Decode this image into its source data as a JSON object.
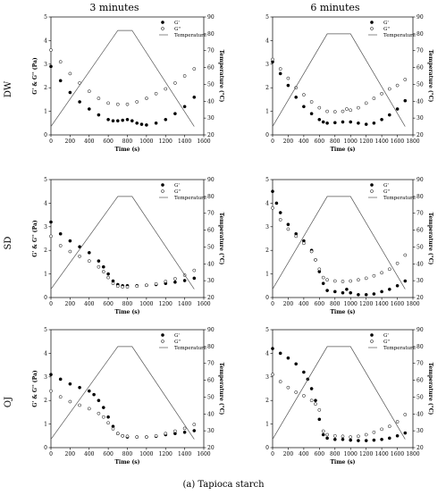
{
  "figure": {
    "col_titles": [
      "3 minutes",
      "6 minutes"
    ],
    "row_labels": [
      "DW",
      "SD",
      "OJ"
    ],
    "caption": "(a) Tapioca starch"
  },
  "chart_data": [
    {
      "id": "dw-3",
      "type": "scatter",
      "xlabel": "Time (s)",
      "ylabel_left": "G' & G'' (Pa)",
      "ylabel_right": "Temperature (°C)",
      "xlim": [
        0,
        1600
      ],
      "xticks": [
        0,
        200,
        400,
        600,
        800,
        1000,
        1200,
        1400,
        1600
      ],
      "ylim_left": [
        0,
        5
      ],
      "yticks_left": [
        0,
        1,
        2,
        3,
        4,
        5
      ],
      "ylim_right": [
        20,
        90
      ],
      "yticks_right": [
        20,
        30,
        40,
        50,
        60,
        70,
        80,
        90
      ],
      "legend": [
        "G'",
        "G''",
        "Temperature"
      ],
      "series": [
        {
          "name": "G'",
          "marker": "filled-circle",
          "x": [
            0,
            100,
            200,
            300,
            400,
            500,
            600,
            650,
            700,
            750,
            800,
            850,
            900,
            950,
            1000,
            1100,
            1200,
            1300,
            1400,
            1500
          ],
          "y": [
            2.9,
            2.3,
            1.8,
            1.4,
            1.1,
            0.85,
            0.65,
            0.6,
            0.6,
            0.62,
            0.65,
            0.6,
            0.5,
            0.45,
            0.42,
            0.5,
            0.65,
            0.9,
            1.2,
            1.6
          ]
        },
        {
          "name": "G''",
          "marker": "open-circle",
          "x": [
            0,
            100,
            200,
            300,
            400,
            500,
            600,
            700,
            800,
            900,
            1000,
            1100,
            1200,
            1300,
            1400,
            1500
          ],
          "y": [
            3.6,
            3.1,
            2.6,
            2.2,
            1.85,
            1.55,
            1.35,
            1.3,
            1.3,
            1.4,
            1.55,
            1.75,
            1.95,
            2.2,
            2.5,
            2.8
          ]
        },
        {
          "name": "Temperature",
          "marker": "line",
          "x": [
            0,
            700,
            850,
            1500
          ],
          "y": [
            25,
            82,
            82,
            25
          ]
        }
      ]
    },
    {
      "id": "dw-6",
      "type": "scatter",
      "xlabel": "Time (s)",
      "ylabel_left": "",
      "ylabel_right": "Temperature (°C)",
      "xlim": [
        0,
        1800
      ],
      "xticks": [
        0,
        200,
        400,
        600,
        800,
        1000,
        1200,
        1400,
        1600,
        1800
      ],
      "ylim_left": [
        0,
        5
      ],
      "yticks_left": [
        0,
        1,
        2,
        3,
        4,
        5
      ],
      "ylim_right": [
        20,
        90
      ],
      "yticks_right": [
        20,
        30,
        40,
        50,
        60,
        70,
        80,
        90
      ],
      "legend": [
        "G'",
        "G''",
        "Temperature"
      ],
      "series": [
        {
          "name": "G'",
          "marker": "filled-circle",
          "x": [
            0,
            100,
            200,
            300,
            400,
            500,
            600,
            650,
            700,
            800,
            900,
            1000,
            1100,
            1200,
            1300,
            1400,
            1500,
            1600,
            1700
          ],
          "y": [
            3.1,
            2.6,
            2.1,
            1.6,
            1.2,
            0.9,
            0.65,
            0.55,
            0.5,
            0.52,
            0.55,
            0.55,
            0.5,
            0.45,
            0.5,
            0.65,
            0.85,
            1.1,
            1.45
          ]
        },
        {
          "name": "G''",
          "marker": "open-circle",
          "x": [
            0,
            100,
            200,
            300,
            400,
            500,
            600,
            700,
            800,
            900,
            950,
            1000,
            1100,
            1200,
            1300,
            1400,
            1500,
            1600,
            1700
          ],
          "y": [
            3.2,
            2.8,
            2.4,
            2.0,
            1.7,
            1.4,
            1.15,
            1.0,
            0.98,
            1.0,
            1.1,
            1.05,
            1.15,
            1.35,
            1.55,
            1.75,
            1.95,
            2.1,
            2.35
          ]
        },
        {
          "name": "Temperature",
          "marker": "line",
          "x": [
            0,
            700,
            1000,
            1700
          ],
          "y": [
            25,
            80,
            80,
            25
          ]
        }
      ]
    },
    {
      "id": "sd-3",
      "type": "scatter",
      "xlabel": "Time (s)",
      "ylabel_left": "G' & G'' (Pa)",
      "ylabel_right": "Temperature (°C)",
      "xlim": [
        0,
        1600
      ],
      "xticks": [
        0,
        200,
        400,
        600,
        800,
        1000,
        1200,
        1400,
        1600
      ],
      "ylim_left": [
        0,
        5
      ],
      "yticks_left": [
        0,
        1,
        2,
        3,
        4,
        5
      ],
      "ylim_right": [
        20,
        90
      ],
      "yticks_right": [
        20,
        30,
        40,
        50,
        60,
        70,
        80,
        90
      ],
      "legend": [
        "G'",
        "G''",
        "Temperature"
      ],
      "series": [
        {
          "name": "G'",
          "marker": "filled-circle",
          "x": [
            0,
            100,
            200,
            300,
            400,
            500,
            550,
            600,
            650,
            700,
            750,
            800,
            900,
            1000,
            1100,
            1200,
            1300,
            1400,
            1500
          ],
          "y": [
            3.2,
            2.7,
            2.4,
            2.15,
            1.9,
            1.55,
            1.3,
            1.0,
            0.7,
            0.55,
            0.5,
            0.5,
            0.5,
            0.52,
            0.55,
            0.6,
            0.65,
            0.72,
            0.82
          ]
        },
        {
          "name": "G''",
          "marker": "open-circle",
          "x": [
            0,
            100,
            200,
            300,
            400,
            500,
            550,
            600,
            650,
            700,
            750,
            800,
            900,
            1000,
            1100,
            1200,
            1300,
            1400,
            1500
          ],
          "y": [
            2.6,
            2.2,
            1.95,
            1.75,
            1.55,
            1.3,
            1.1,
            0.85,
            0.6,
            0.48,
            0.45,
            0.45,
            0.48,
            0.52,
            0.58,
            0.68,
            0.8,
            0.95,
            1.15
          ]
        },
        {
          "name": "Temperature",
          "marker": "line",
          "x": [
            0,
            700,
            850,
            1500
          ],
          "y": [
            25,
            80,
            80,
            25
          ]
        }
      ]
    },
    {
      "id": "sd-6",
      "type": "scatter",
      "xlabel": "Time (s)",
      "ylabel_left": "",
      "ylabel_right": "Temperature (°C)",
      "xlim": [
        0,
        1800
      ],
      "xticks": [
        0,
        200,
        400,
        600,
        800,
        1000,
        1200,
        1400,
        1600,
        1800
      ],
      "ylim_left": [
        0,
        5
      ],
      "yticks_left": [
        0,
        1,
        2,
        3,
        4,
        5
      ],
      "ylim_right": [
        20,
        90
      ],
      "yticks_right": [
        20,
        30,
        40,
        50,
        60,
        70,
        80,
        90
      ],
      "legend": [
        "G'",
        "G''",
        "Temperature"
      ],
      "series": [
        {
          "name": "G'",
          "marker": "filled-circle",
          "x": [
            0,
            50,
            100,
            200,
            300,
            400,
            500,
            550,
            600,
            650,
            700,
            800,
            900,
            950,
            1000,
            1100,
            1200,
            1300,
            1400,
            1500,
            1600,
            1700
          ],
          "y": [
            4.5,
            4.0,
            3.6,
            3.1,
            2.7,
            2.4,
            2.0,
            1.6,
            1.1,
            0.6,
            0.3,
            0.25,
            0.2,
            0.35,
            0.2,
            0.12,
            0.12,
            0.15,
            0.25,
            0.35,
            0.5,
            0.7
          ]
        },
        {
          "name": "G''",
          "marker": "open-circle",
          "x": [
            0,
            100,
            200,
            300,
            400,
            500,
            550,
            600,
            650,
            700,
            800,
            900,
            1000,
            1100,
            1200,
            1300,
            1400,
            1500,
            1600,
            1700
          ],
          "y": [
            3.8,
            3.3,
            2.9,
            2.6,
            2.3,
            1.95,
            1.6,
            1.2,
            0.85,
            0.75,
            0.7,
            0.68,
            0.7,
            0.75,
            0.82,
            0.92,
            1.05,
            1.2,
            1.45,
            1.8
          ]
        },
        {
          "name": "Temperature",
          "marker": "line",
          "x": [
            0,
            700,
            1000,
            1700
          ],
          "y": [
            25,
            80,
            80,
            25
          ]
        }
      ]
    },
    {
      "id": "oj-3",
      "type": "scatter",
      "xlabel": "Time (s)",
      "ylabel_left": "G' & G'' (Pa)",
      "ylabel_right": "Temperature (°C)",
      "xlim": [
        0,
        1600
      ],
      "xticks": [
        0,
        200,
        400,
        600,
        800,
        1000,
        1200,
        1400,
        1600
      ],
      "ylim_left": [
        0,
        5
      ],
      "yticks_left": [
        0,
        1,
        2,
        3,
        4,
        5
      ],
      "ylim_right": [
        20,
        90
      ],
      "yticks_right": [
        20,
        30,
        40,
        50,
        60,
        70,
        80,
        90
      ],
      "legend": [
        "G'",
        "G''",
        "Temperature"
      ],
      "series": [
        {
          "name": "G'",
          "marker": "filled-circle",
          "x": [
            0,
            100,
            200,
            300,
            400,
            450,
            500,
            550,
            600,
            650,
            700,
            750,
            800,
            900,
            1000,
            1100,
            1200,
            1300,
            1400,
            1500
          ],
          "y": [
            3.1,
            2.9,
            2.7,
            2.55,
            2.4,
            2.25,
            2.0,
            1.7,
            1.3,
            0.9,
            0.6,
            0.5,
            0.45,
            0.45,
            0.45,
            0.48,
            0.55,
            0.6,
            0.65,
            0.72
          ]
        },
        {
          "name": "G''",
          "marker": "open-circle",
          "x": [
            0,
            100,
            200,
            300,
            400,
            500,
            550,
            600,
            650,
            700,
            750,
            800,
            900,
            1000,
            1100,
            1200,
            1300,
            1400,
            1500
          ],
          "y": [
            2.4,
            2.15,
            1.95,
            1.8,
            1.65,
            1.45,
            1.3,
            1.05,
            0.8,
            0.6,
            0.5,
            0.48,
            0.45,
            0.45,
            0.5,
            0.6,
            0.7,
            0.82,
            0.98
          ]
        },
        {
          "name": "Temperature",
          "marker": "line",
          "x": [
            0,
            700,
            850,
            1500
          ],
          "y": [
            25,
            80,
            80,
            25
          ]
        }
      ]
    },
    {
      "id": "oj-6",
      "type": "scatter",
      "xlabel": "Time (s)",
      "ylabel_left": "",
      "ylabel_right": "Temperature (°C)",
      "xlim": [
        0,
        1800
      ],
      "xticks": [
        0,
        200,
        400,
        600,
        800,
        1000,
        1200,
        1400,
        1600,
        1800
      ],
      "ylim_left": [
        0,
        5
      ],
      "yticks_left": [
        0,
        1,
        2,
        3,
        4,
        5
      ],
      "ylim_right": [
        20,
        90
      ],
      "yticks_right": [
        20,
        30,
        40,
        50,
        60,
        70,
        80,
        90
      ],
      "legend": [
        "G'",
        "G''",
        "Temperature"
      ],
      "series": [
        {
          "name": "G'",
          "marker": "filled-circle",
          "x": [
            0,
            100,
            200,
            300,
            400,
            450,
            500,
            550,
            600,
            650,
            700,
            800,
            900,
            1000,
            1100,
            1200,
            1300,
            1400,
            1500,
            1600,
            1700
          ],
          "y": [
            4.2,
            4.0,
            3.8,
            3.55,
            3.2,
            2.9,
            2.5,
            2.0,
            1.2,
            0.55,
            0.4,
            0.35,
            0.35,
            0.32,
            0.3,
            0.3,
            0.32,
            0.35,
            0.4,
            0.5,
            0.62
          ]
        },
        {
          "name": "G''",
          "marker": "open-circle",
          "x": [
            0,
            100,
            200,
            300,
            400,
            500,
            550,
            600,
            650,
            700,
            800,
            900,
            1000,
            1100,
            1200,
            1300,
            1400,
            1500,
            1600,
            1700
          ],
          "y": [
            3.1,
            2.8,
            2.55,
            2.35,
            2.2,
            2.0,
            1.85,
            1.6,
            0.7,
            0.55,
            0.5,
            0.48,
            0.45,
            0.48,
            0.55,
            0.65,
            0.78,
            0.9,
            1.1,
            1.4
          ]
        },
        {
          "name": "Temperature",
          "marker": "line",
          "x": [
            0,
            700,
            1000,
            1700
          ],
          "y": [
            25,
            80,
            80,
            25
          ]
        }
      ]
    }
  ]
}
